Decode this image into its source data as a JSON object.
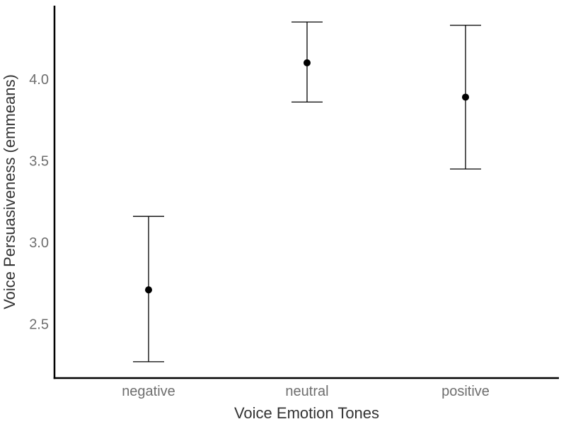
{
  "chart_data": {
    "type": "scatter",
    "title": "",
    "xlabel": "Voice Emotion Tones",
    "ylabel": "Voice Persuasiveness (emmeans)",
    "categories": [
      "negative",
      "neutral",
      "positive"
    ],
    "series": [
      {
        "values": [
          2.71,
          4.1,
          3.89
        ],
        "lower": [
          2.27,
          3.86,
          3.45
        ],
        "upper": [
          3.16,
          4.35,
          4.33
        ]
      }
    ],
    "ylim": [
      2.17,
      4.45
    ],
    "yticks": [
      2.5,
      3.0,
      3.5,
      4.0
    ],
    "ytick_labels": [
      "2.5",
      "3.0",
      "3.5",
      "4.0"
    ],
    "grid": false,
    "error_bars": true
  }
}
